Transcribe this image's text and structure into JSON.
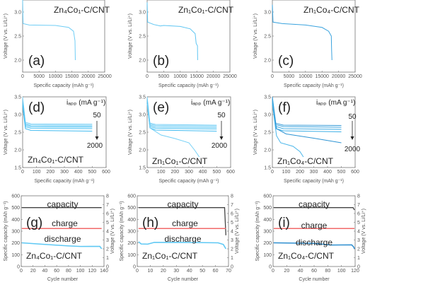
{
  "chart_data": [
    {
      "panel": "(a)",
      "type": "line",
      "sample": "Zn₄Co₁-C/CNT",
      "xlabel": "Specific capacity (mAh g⁻¹)",
      "ylabel": "Voltage (V vs. Li/Li⁺)",
      "xlim": [
        0,
        25000
      ],
      "ylim": [
        1.75,
        3.25
      ],
      "xticks": [
        0,
        5000,
        10000,
        15000,
        20000,
        25000
      ],
      "yticks": [
        2.0,
        2.5,
        3.0
      ],
      "series": [
        {
          "color": "#6fcdf5",
          "points": [
            [
              0,
              3.25
            ],
            [
              150,
              2.76
            ],
            [
              2000,
              2.73
            ],
            [
              10000,
              2.72
            ],
            [
              14000,
              2.68
            ],
            [
              15500,
              2.6
            ],
            [
              15950,
              2.4
            ],
            [
              16050,
              2.0
            ]
          ]
        }
      ]
    },
    {
      "panel": "(b)",
      "type": "line",
      "sample": "Zn₁Co₁-C/CNT",
      "xlabel": "Specific capacity (mAh g⁻¹)",
      "ylabel": "Voltage (V vs. Li/Li⁺)",
      "xlim": [
        0,
        25000
      ],
      "ylim": [
        1.75,
        3.25
      ],
      "xticks": [
        0,
        5000,
        10000,
        15000,
        20000,
        25000
      ],
      "yticks": [
        2.0,
        2.5,
        3.0
      ],
      "series": [
        {
          "color": "#5ec5f2",
          "points": [
            [
              0,
              3.2
            ],
            [
              150,
              2.79
            ],
            [
              2000,
              2.74
            ],
            [
              4000,
              2.71
            ],
            [
              5000,
              2.72
            ],
            [
              10000,
              2.7
            ],
            [
              13000,
              2.65
            ],
            [
              14500,
              2.55
            ],
            [
              14800,
              2.35
            ],
            [
              15000,
              2.32
            ],
            [
              15200,
              2.3
            ],
            [
              15250,
              2.0
            ]
          ]
        }
      ]
    },
    {
      "panel": "(c)",
      "type": "line",
      "sample": "Zn₁Co₄-C/CNT",
      "xlabel": "Specific capacity (mAh g⁻¹)",
      "ylabel": "Voltage (V vs. Li/Li⁺)",
      "xlim": [
        0,
        25000
      ],
      "ylim": [
        1.75,
        3.25
      ],
      "xticks": [
        0,
        5000,
        10000,
        15000,
        20000,
        25000
      ],
      "yticks": [
        2.0,
        2.5,
        3.0
      ],
      "series": [
        {
          "color": "#3aa3de",
          "points": [
            [
              0,
              3.15
            ],
            [
              200,
              2.79
            ],
            [
              3000,
              2.76
            ],
            [
              10000,
              2.73
            ],
            [
              15000,
              2.68
            ],
            [
              17000,
              2.6
            ],
            [
              17800,
              2.5
            ],
            [
              17900,
              2.2
            ],
            [
              18000,
              2.0
            ]
          ]
        }
      ]
    },
    {
      "panel": "(d)",
      "type": "line",
      "sample": "Zn₄Co₁-C/CNT",
      "xlabel": "Specific capacity (mAh g⁻¹)",
      "ylabel": "Voltage (V vs. Li/Li⁺)",
      "xlim": [
        0,
        600
      ],
      "ylim": [
        1.5,
        3.5
      ],
      "xticks": [
        0,
        100,
        200,
        300,
        400,
        500,
        600
      ],
      "yticks": [
        1.5,
        2.0,
        2.5,
        3.0,
        3.5
      ],
      "legend_title": "iₐₚₚ (mA g⁻¹)",
      "rate_top": "50",
      "rate_bottom": "2000",
      "series": [
        {
          "color": "#8fd8f7",
          "points": [
            [
              0,
              3.5
            ],
            [
              20,
              2.78
            ],
            [
              60,
              2.74
            ],
            [
              500,
              2.73
            ]
          ]
        },
        {
          "color": "#7fd2f6",
          "points": [
            [
              0,
              3.45
            ],
            [
              20,
              2.75
            ],
            [
              60,
              2.71
            ],
            [
              500,
              2.7
            ]
          ]
        },
        {
          "color": "#6fcdf5",
          "points": [
            [
              0,
              3.4
            ],
            [
              20,
              2.72
            ],
            [
              60,
              2.68
            ],
            [
              500,
              2.67
            ]
          ]
        },
        {
          "color": "#5ec8f4",
          "points": [
            [
              0,
              3.35
            ],
            [
              20,
              2.69
            ],
            [
              60,
              2.65
            ],
            [
              500,
              2.64
            ]
          ]
        },
        {
          "color": "#4ec2f2",
          "points": [
            [
              0,
              3.3
            ],
            [
              20,
              2.65
            ],
            [
              60,
              2.61
            ],
            [
              500,
              2.6
            ]
          ]
        },
        {
          "color": "#42bbf0",
          "points": [
            [
              0,
              3.25
            ],
            [
              20,
              2.6
            ],
            [
              60,
              2.55
            ],
            [
              500,
              2.53
            ]
          ]
        }
      ]
    },
    {
      "panel": "(e)",
      "type": "line",
      "sample": "Zn₁Co₁-C/CNT",
      "xlabel": "Specific capacity (mAh g⁻¹)",
      "ylabel": "Voltage (V vs. Li/Li⁺)",
      "xlim": [
        0,
        600
      ],
      "ylim": [
        1.5,
        3.5
      ],
      "xticks": [
        0,
        100,
        200,
        300,
        400,
        500,
        600
      ],
      "yticks": [
        1.5,
        2.0,
        2.5,
        3.0,
        3.5
      ],
      "legend_title": "iₐₚₚ (mA g⁻¹)",
      "rate_top": "50",
      "rate_bottom": "2000",
      "series": [
        {
          "color": "#7fd2f6",
          "points": [
            [
              0,
              3.5
            ],
            [
              20,
              2.76
            ],
            [
              60,
              2.72
            ],
            [
              500,
              2.7
            ]
          ]
        },
        {
          "color": "#6fcdf5",
          "points": [
            [
              0,
              3.45
            ],
            [
              20,
              2.73
            ],
            [
              60,
              2.69
            ],
            [
              500,
              2.67
            ]
          ]
        },
        {
          "color": "#5ec8f4",
          "points": [
            [
              0,
              3.4
            ],
            [
              20,
              2.7
            ],
            [
              60,
              2.65
            ],
            [
              500,
              2.63
            ]
          ]
        },
        {
          "color": "#4ec2f2",
          "points": [
            [
              0,
              3.35
            ],
            [
              20,
              2.66
            ],
            [
              60,
              2.61
            ],
            [
              500,
              2.59
            ]
          ]
        },
        {
          "color": "#42bbf0",
          "points": [
            [
              0,
              3.3
            ],
            [
              20,
              2.62
            ],
            [
              60,
              2.56
            ],
            [
              500,
              2.53
            ]
          ]
        },
        {
          "color": "#74d0f6",
          "points": [
            [
              0,
              3.3
            ],
            [
              20,
              2.62
            ],
            [
              100,
              2.42
            ],
            [
              200,
              2.32
            ],
            [
              300,
              2.2
            ],
            [
              340,
              2.0
            ],
            [
              375,
              1.8
            ]
          ]
        }
      ]
    },
    {
      "panel": "(f)",
      "type": "line",
      "sample": "Zn₁Co₄-C/CNT",
      "xlabel": "Specific capacity (mAh g⁻¹)",
      "ylabel": "Voltage (V vs. Li/Li⁺)",
      "xlim": [
        0,
        600
      ],
      "ylim": [
        1.5,
        3.5
      ],
      "xticks": [
        0,
        100,
        200,
        300,
        400,
        500,
        600
      ],
      "yticks": [
        1.5,
        2.0,
        2.5,
        3.0,
        3.5
      ],
      "legend_title": "iₐₚₚ (mA g⁻¹)",
      "rate_top": "50",
      "rate_bottom": "2000",
      "series": [
        {
          "color": "#3a9cd8",
          "points": [
            [
              0,
              3.5
            ],
            [
              25,
              2.75
            ],
            [
              80,
              2.7
            ],
            [
              500,
              2.69
            ]
          ]
        },
        {
          "color": "#3aa3de",
          "points": [
            [
              0,
              3.45
            ],
            [
              25,
              2.71
            ],
            [
              80,
              2.66
            ],
            [
              500,
              2.64
            ]
          ]
        },
        {
          "color": "#3aa8e2",
          "points": [
            [
              0,
              3.4
            ],
            [
              25,
              2.66
            ],
            [
              80,
              2.6
            ],
            [
              500,
              2.58
            ]
          ]
        },
        {
          "color": "#3aaee6",
          "points": [
            [
              0,
              3.35
            ],
            [
              25,
              2.6
            ],
            [
              80,
              2.54
            ],
            [
              500,
              2.51
            ]
          ]
        },
        {
          "color": "#2f95d4",
          "points": [
            [
              0,
              3.3
            ],
            [
              30,
              2.6
            ],
            [
              100,
              2.45
            ],
            [
              300,
              2.33
            ],
            [
              500,
              2.2
            ]
          ]
        },
        {
          "color": "#4ab6ea",
          "points": [
            [
              0,
              3.3
            ],
            [
              30,
              2.4
            ],
            [
              60,
              2.2
            ],
            [
              150,
              2.1
            ],
            [
              200,
              1.95
            ],
            [
              225,
              1.8
            ]
          ]
        }
      ]
    },
    {
      "panel": "(g)",
      "type": "line",
      "sample": "Zn₄Co₁-C/CNT",
      "xlabel": "Cycle number",
      "ylabel": "Specific capacity (mAh g⁻¹)",
      "y2label": "Voltage (V vs. Li/Li⁺)",
      "xlim": [
        0,
        140
      ],
      "ylim": [
        0,
        600
      ],
      "y2lim": [
        0,
        8
      ],
      "xticks": [
        0,
        20,
        40,
        60,
        80,
        100,
        120,
        140
      ],
      "yticks": [
        0,
        100,
        200,
        300,
        400,
        500,
        600
      ],
      "y2ticks": [
        0,
        1,
        2,
        3,
        4,
        5,
        6,
        7,
        8
      ],
      "labels": {
        "capacity": "capacity",
        "charge": "charge",
        "discharge": "discharge"
      },
      "capacity": {
        "color": "#444444",
        "points": [
          [
            1,
            500
          ],
          [
            136,
            500
          ]
        ]
      },
      "charge": {
        "color": "#f26a6a",
        "points": [
          [
            1,
            4.3
          ],
          [
            136,
            4.3
          ]
        ]
      },
      "discharge": {
        "color": "#5ec8f4",
        "points": [
          [
            1,
            2.68
          ],
          [
            40,
            2.5
          ],
          [
            80,
            2.33
          ],
          [
            100,
            2.27
          ],
          [
            133,
            2.28
          ],
          [
            136,
            2.0
          ]
        ]
      }
    },
    {
      "panel": "(h)",
      "type": "line",
      "sample": "Zn₁Co₁-C/CNT",
      "xlabel": "Cycle number",
      "ylabel": "Specific capacity (mAh g⁻¹)",
      "y2label": "Voltage (V vs. Li/Li⁺)",
      "xlim": [
        0,
        70
      ],
      "ylim": [
        0,
        600
      ],
      "y2lim": [
        0,
        8
      ],
      "xticks": [
        0,
        10,
        20,
        30,
        40,
        50,
        60,
        70
      ],
      "yticks": [
        0,
        100,
        200,
        300,
        400,
        500,
        600
      ],
      "y2ticks": [
        0,
        1,
        2,
        3,
        4,
        5,
        6,
        7,
        8
      ],
      "labels": {
        "capacity": "capacity",
        "charge": "charge",
        "discharge": "discharge"
      },
      "capacity": {
        "color": "#444444",
        "points": [
          [
            1,
            500
          ],
          [
            67,
            500
          ],
          [
            68,
            265
          ]
        ]
      },
      "charge": {
        "color": "#f26a6a",
        "points": [
          [
            1,
            4.3
          ],
          [
            68,
            4.3
          ]
        ]
      },
      "discharge": {
        "color": "#5ec8f4",
        "points": [
          [
            1,
            2.8
          ],
          [
            3,
            2.55
          ],
          [
            8,
            2.53
          ],
          [
            13,
            2.73
          ],
          [
            40,
            2.72
          ],
          [
            62,
            2.68
          ],
          [
            66,
            2.5
          ],
          [
            68,
            2.0
          ]
        ]
      }
    },
    {
      "panel": "(i)",
      "type": "line",
      "sample": "Zn₁Co₄-C/CNT",
      "xlabel": "Cycle number",
      "ylabel": "Specific capacity (mAh g⁻¹)",
      "y2label": "Voltage (V vs. Li/Li⁺)",
      "xlim": [
        0,
        120
      ],
      "ylim": [
        0,
        600
      ],
      "y2lim": [
        0,
        8
      ],
      "xticks": [
        0,
        20,
        40,
        60,
        80,
        100,
        120
      ],
      "yticks": [
        0,
        100,
        200,
        300,
        400,
        500,
        600
      ],
      "y2ticks": [
        0,
        1,
        2,
        3,
        4,
        5,
        6,
        7,
        8
      ],
      "labels": {
        "capacity": "capacity",
        "charge": "charge",
        "discharge": "discharge"
      },
      "capacity": {
        "color": "#444444",
        "points": [
          [
            1,
            500
          ],
          [
            117,
            500
          ],
          [
            119,
            480
          ]
        ]
      },
      "charge": {
        "color": "#f26a6a",
        "points": [
          [
            1,
            4.3
          ],
          [
            119,
            4.3
          ]
        ]
      },
      "discharge": {
        "color": "#2f8fd0",
        "points": [
          [
            1,
            2.68
          ],
          [
            60,
            2.62
          ],
          [
            85,
            2.43
          ],
          [
            115,
            2.45
          ],
          [
            118,
            2.2
          ],
          [
            119,
            2.0
          ]
        ]
      }
    }
  ]
}
